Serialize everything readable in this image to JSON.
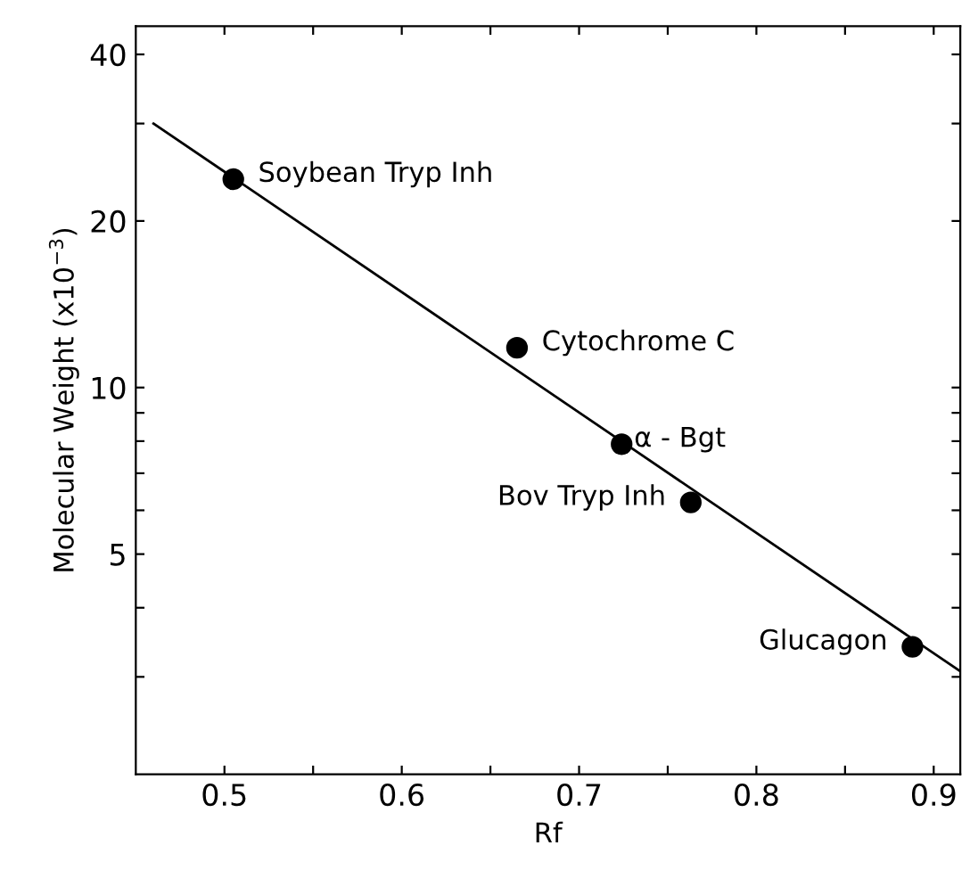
{
  "chart_data": {
    "type": "scatter",
    "xlabel": "Rf",
    "ylabel": "Molecular Weight (x10$^{−3}$)",
    "log": "y",
    "xlim": [
      0.45,
      0.915
    ],
    "ylim": [
      2,
      45
    ],
    "xticks": [
      0.5,
      {
        "value": 0.55,
        "label": null
      },
      0.6,
      {
        "value": 0.65,
        "label": null
      },
      0.7,
      {
        "value": 0.75,
        "label": null
      },
      0.8,
      {
        "value": 0.85,
        "label": null
      },
      0.9
    ],
    "yticks": [
      {
        "value": 3,
        "label": null
      },
      {
        "value": 4,
        "label": null
      },
      5,
      {
        "value": 6,
        "label": null
      },
      {
        "value": 7,
        "label": null
      },
      {
        "value": 8,
        "label": null
      },
      {
        "value": 9,
        "label": null
      },
      10,
      20,
      {
        "value": 30,
        "label": null
      },
      40
    ],
    "grid": false,
    "legend": false,
    "marker": "circle",
    "series": [
      {
        "color": "#000000",
        "x": [
          0.505,
          0.665,
          0.724,
          0.763,
          0.888
        ],
        "values": [
          23.8,
          11.8,
          7.9,
          6.2,
          3.4
        ]
      },
      {
        "type": "line",
        "color": "#000000",
        "line_style": "solid",
        "marker": "none",
        "x": [
          0.46,
          0.915
        ],
        "values": [
          30.0,
          3.07
        ]
      }
    ],
    "annotations": [
      {
        "text": "Soybean Tryp Inh",
        "x": 0.505,
        "y": 23.8
      },
      {
        "text": "Cytochrome C",
        "x": 0.665,
        "y": 11.8
      },
      {
        "text": "α - Bgt",
        "x": 0.724,
        "y": 7.9
      },
      {
        "text": "Bov Tryp Inh",
        "x": 0.763,
        "y": 6.2
      },
      {
        "text": "Glucagon",
        "x": 0.888,
        "y": 3.4
      }
    ]
  }
}
